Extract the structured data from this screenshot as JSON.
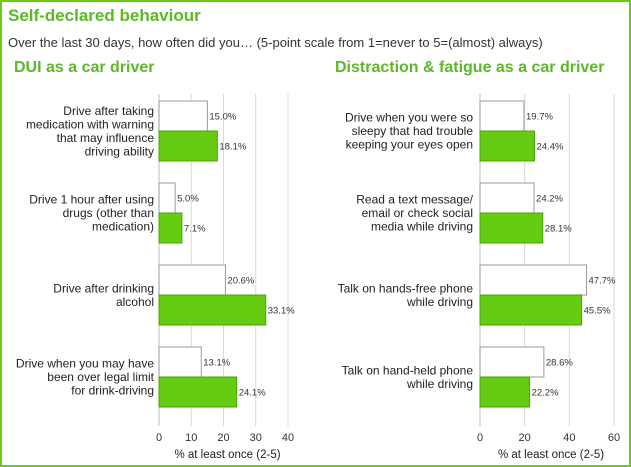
{
  "header": {
    "title": "Self-declared behaviour",
    "subtitle": "Over the last 30 days, how often did you… (5-point scale from 1=never to 5=(almost) always)"
  },
  "colors": {
    "accent_green": "#66cc11",
    "title_green": "#5cb82a",
    "frame_green": "#6cc91a",
    "bar_outline": "#9a9a9a",
    "grid": "#d9d9d9"
  },
  "chart_data": [
    {
      "type": "bar",
      "orientation": "horizontal",
      "title": "DUI as a car driver",
      "categories": [
        [
          "Drive after taking",
          "medication with warning",
          "that may influence",
          "driving ability"
        ],
        [
          "Drive 1 hour after using",
          "drugs (other than",
          "medication)"
        ],
        [
          "Drive after drinking",
          "alcohol"
        ],
        [
          "Drive when you may have",
          "been over legal limit",
          "for drink-driving"
        ]
      ],
      "series": [
        {
          "name": "",
          "color": "#ffffff",
          "values": [
            15.0,
            5.0,
            20.6,
            13.1
          ]
        },
        {
          "name": "",
          "color": "#66cc11",
          "values": [
            18.1,
            7.1,
            33.1,
            24.1
          ]
        }
      ],
      "xlabel": "% at least once (2-5)",
      "xlim": [
        0,
        40
      ],
      "ticks": [
        0,
        10,
        20,
        30,
        40
      ],
      "grid": true
    },
    {
      "type": "bar",
      "orientation": "horizontal",
      "title": "Distraction & fatigue as a car driver",
      "categories": [
        [
          "Drive when you were so",
          "sleepy that had trouble",
          "keeping your eyes open"
        ],
        [
          "Read a text message/",
          "email or check social",
          "media while driving"
        ],
        [
          "Talk on hands-free phone",
          "while driving"
        ],
        [
          "Talk on hand-held phone",
          "while driving"
        ]
      ],
      "series": [
        {
          "name": "",
          "color": "#ffffff",
          "values": [
            19.7,
            24.2,
            47.7,
            28.6
          ]
        },
        {
          "name": "",
          "color": "#66cc11",
          "values": [
            24.4,
            28.1,
            45.5,
            22.2
          ]
        }
      ],
      "xlabel": "% at least once (2-5)",
      "xlim": [
        0,
        60
      ],
      "ticks": [
        0,
        20,
        40,
        60
      ],
      "grid": true
    }
  ]
}
